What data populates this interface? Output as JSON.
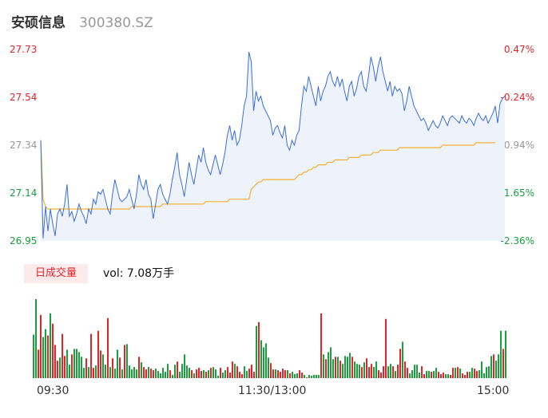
{
  "stock": {
    "name": "安硕信息",
    "code": "300380.SZ"
  },
  "price_axis": [
    "27.73",
    "27.54",
    "27.34",
    "27.14",
    "26.95"
  ],
  "pct_axis": [
    "0.47%",
    "-0.24%",
    "-0.94%",
    "-1.65%",
    "-2.36%"
  ],
  "axis_colors": {
    "up": "#e0262a",
    "neutral": "#999999",
    "down": "#1a9e3f"
  },
  "volume": {
    "tab_label": "日成交量",
    "summary": "vol: 7.08万手"
  },
  "time_axis": [
    "09:30",
    "11:30/13:00",
    "15:00"
  ],
  "colors": {
    "price_line": "#3a6fd8",
    "avg_line": "#f2b233",
    "area_fill": "#eef2fb",
    "up": "#e0262a",
    "down": "#1a9e3f"
  },
  "chart_data": {
    "type": "line",
    "title": "",
    "ylim": [
      26.95,
      27.73
    ],
    "price": [
      27.36,
      26.96,
      27.09,
      26.99,
      27.08,
      27.02,
      26.97,
      27.06,
      27.08,
      27.05,
      27.1,
      27.18,
      27.05,
      27.07,
      27.03,
      27.06,
      27.1,
      27.07,
      27.05,
      27.02,
      27.08,
      27.06,
      27.12,
      27.1,
      27.15,
      27.14,
      27.16,
      27.12,
      27.08,
      27.06,
      27.14,
      27.2,
      27.16,
      27.12,
      27.11,
      27.12,
      27.13,
      27.16,
      27.12,
      27.08,
      27.14,
      27.22,
      27.18,
      27.16,
      27.2,
      27.14,
      27.12,
      27.04,
      27.1,
      27.16,
      27.18,
      27.14,
      27.12,
      27.1,
      27.14,
      27.2,
      27.25,
      27.31,
      27.22,
      27.18,
      27.13,
      27.2,
      27.27,
      27.22,
      27.18,
      27.24,
      27.3,
      27.27,
      27.33,
      27.27,
      27.24,
      27.22,
      27.26,
      27.3,
      27.26,
      27.22,
      27.26,
      27.31,
      27.38,
      27.42,
      27.36,
      27.4,
      27.34,
      27.36,
      27.42,
      27.5,
      27.54,
      27.72,
      27.68,
      27.48,
      27.56,
      27.52,
      27.54,
      27.5,
      27.48,
      27.46,
      27.44,
      27.38,
      27.41,
      27.42,
      27.39,
      27.37,
      27.42,
      27.34,
      27.32,
      27.36,
      27.34,
      27.38,
      27.4,
      27.5,
      27.58,
      27.56,
      27.62,
      27.58,
      27.54,
      27.5,
      27.58,
      27.52,
      27.56,
      27.58,
      27.62,
      27.64,
      27.6,
      27.58,
      27.62,
      27.58,
      27.61,
      27.56,
      27.52,
      27.58,
      27.6,
      27.54,
      27.57,
      27.62,
      27.64,
      27.58,
      27.56,
      27.62,
      27.7,
      27.66,
      27.6,
      27.66,
      27.7,
      27.64,
      27.6,
      27.56,
      27.6,
      27.54,
      27.58,
      27.56,
      27.57,
      27.55,
      27.48,
      27.52,
      27.58,
      27.54,
      27.5,
      27.48,
      27.46,
      27.44,
      27.45,
      27.43,
      27.4,
      27.42,
      27.44,
      27.42,
      27.41,
      27.43,
      27.46,
      27.44,
      27.42,
      27.45,
      27.46,
      27.45,
      27.44,
      27.43,
      27.46,
      27.44,
      27.43,
      27.45,
      27.44,
      27.42,
      27.45,
      27.47,
      27.45,
      27.44,
      27.46,
      27.43,
      27.45,
      27.47,
      27.5,
      27.43,
      27.51,
      27.53,
      27.54
    ],
    "average": [
      27.36,
      27.12,
      27.09,
      27.08,
      27.08,
      27.08,
      27.08,
      27.08,
      27.08,
      27.08,
      27.08,
      27.08,
      27.08,
      27.08,
      27.08,
      27.08,
      27.08,
      27.08,
      27.08,
      27.08,
      27.08,
      27.08,
      27.08,
      27.08,
      27.08,
      27.08,
      27.08,
      27.08,
      27.08,
      27.08,
      27.08,
      27.08,
      27.08,
      27.08,
      27.08,
      27.08,
      27.08,
      27.08,
      27.09,
      27.09,
      27.09,
      27.09,
      27.09,
      27.09,
      27.09,
      27.09,
      27.09,
      27.09,
      27.09,
      27.09,
      27.09,
      27.1,
      27.1,
      27.1,
      27.1,
      27.1,
      27.1,
      27.1,
      27.1,
      27.1,
      27.1,
      27.1,
      27.1,
      27.1,
      27.1,
      27.1,
      27.1,
      27.1,
      27.1,
      27.11,
      27.11,
      27.11,
      27.11,
      27.11,
      27.11,
      27.11,
      27.11,
      27.11,
      27.11,
      27.12,
      27.12,
      27.12,
      27.12,
      27.12,
      27.12,
      27.12,
      27.12,
      27.12,
      27.16,
      27.17,
      27.18,
      27.19,
      27.19,
      27.2,
      27.2,
      27.2,
      27.2,
      27.2,
      27.2,
      27.2,
      27.2,
      27.2,
      27.2,
      27.2,
      27.2,
      27.2,
      27.2,
      27.21,
      27.22,
      27.22,
      27.23,
      27.23,
      27.24,
      27.24,
      27.25,
      27.25,
      27.26,
      27.26,
      27.26,
      27.26,
      27.27,
      27.27,
      27.27,
      27.28,
      27.28,
      27.28,
      27.28,
      27.28,
      27.28,
      27.29,
      27.29,
      27.29,
      27.29,
      27.29,
      27.3,
      27.3,
      27.3,
      27.3,
      27.3,
      27.31,
      27.31,
      27.31,
      27.32,
      27.32,
      27.32,
      27.32,
      27.32,
      27.32,
      27.32,
      27.32,
      27.33,
      27.33,
      27.33,
      27.33,
      27.33,
      27.33,
      27.33,
      27.33,
      27.33,
      27.33,
      27.33,
      27.33,
      27.33,
      27.33,
      27.33,
      27.33,
      27.33,
      27.33,
      27.34,
      27.34,
      27.34,
      27.34,
      27.34,
      27.34,
      27.34,
      27.34,
      27.34,
      27.34,
      27.34,
      27.34,
      27.34,
      27.34,
      27.35,
      27.35,
      27.35,
      27.35,
      27.35,
      27.35,
      27.35,
      27.35,
      27.35
    ],
    "volume_max": 100,
    "volumes": [
      [
        55,
        1
      ],
      [
        100,
        1
      ],
      [
        36,
        -1
      ],
      [
        80,
        -1
      ],
      [
        52,
        1
      ],
      [
        62,
        1
      ],
      [
        54,
        -1
      ],
      [
        82,
        1
      ],
      [
        69,
        -1
      ],
      [
        42,
        -1
      ],
      [
        22,
        -1
      ],
      [
        26,
        1
      ],
      [
        56,
        -1
      ],
      [
        28,
        -1
      ],
      [
        36,
        1
      ],
      [
        17,
        1
      ],
      [
        30,
        -1
      ],
      [
        37,
        1
      ],
      [
        37,
        1
      ],
      [
        33,
        1
      ],
      [
        27,
        1
      ],
      [
        13,
        1
      ],
      [
        25,
        -1
      ],
      [
        14,
        1
      ],
      [
        56,
        -1
      ],
      [
        13,
        -1
      ],
      [
        16,
        1
      ],
      [
        60,
        -1
      ],
      [
        35,
        -1
      ],
      [
        30,
        1
      ],
      [
        17,
        1
      ],
      [
        76,
        -1
      ],
      [
        14,
        1
      ],
      [
        25,
        -1
      ],
      [
        12,
        1
      ],
      [
        36,
        1
      ],
      [
        26,
        -1
      ],
      [
        11,
        1
      ],
      [
        42,
        -1
      ],
      [
        43,
        1
      ],
      [
        16,
        1
      ],
      [
        11,
        1
      ],
      [
        14,
        1
      ],
      [
        11,
        1
      ],
      [
        27,
        -1
      ],
      [
        20,
        1
      ],
      [
        14,
        -1
      ],
      [
        11,
        -1
      ],
      [
        14,
        1
      ],
      [
        12,
        -1
      ],
      [
        10,
        -1
      ],
      [
        12,
        1
      ],
      [
        9,
        1
      ],
      [
        6,
        1
      ],
      [
        13,
        1
      ],
      [
        8,
        1
      ],
      [
        18,
        1
      ],
      [
        10,
        -1
      ],
      [
        4,
        1
      ],
      [
        17,
        1
      ],
      [
        21,
        -1
      ],
      [
        8,
        1
      ],
      [
        18,
        1
      ],
      [
        30,
        1
      ],
      [
        16,
        1
      ],
      [
        13,
        1
      ],
      [
        10,
        -1
      ],
      [
        6,
        1
      ],
      [
        11,
        -1
      ],
      [
        13,
        -1
      ],
      [
        9,
        -1
      ],
      [
        10,
        1
      ],
      [
        8,
        -1
      ],
      [
        10,
        1
      ],
      [
        13,
        -1
      ],
      [
        14,
        1
      ],
      [
        11,
        1
      ],
      [
        3,
        1
      ],
      [
        13,
        -1
      ],
      [
        7,
        1
      ],
      [
        10,
        1
      ],
      [
        14,
        -1
      ],
      [
        7,
        -1
      ],
      [
        21,
        -1
      ],
      [
        18,
        1
      ],
      [
        15,
        -1
      ],
      [
        8,
        -1
      ],
      [
        5,
        -1
      ],
      [
        15,
        1
      ],
      [
        9,
        1
      ],
      [
        12,
        -1
      ],
      [
        17,
        -1
      ],
      [
        8,
        -1
      ],
      [
        66,
        1
      ],
      [
        71,
        -1
      ],
      [
        48,
        1
      ],
      [
        39,
        1
      ],
      [
        44,
        1
      ],
      [
        26,
        1
      ],
      [
        19,
        -1
      ],
      [
        11,
        -1
      ],
      [
        11,
        1
      ],
      [
        10,
        -1
      ],
      [
        8,
        -1
      ],
      [
        12,
        -1
      ],
      [
        10,
        -1
      ],
      [
        10,
        1
      ],
      [
        6,
        -1
      ],
      [
        8,
        1
      ],
      [
        5,
        1
      ],
      [
        6,
        1
      ],
      [
        10,
        -1
      ],
      [
        7,
        -1
      ],
      [
        4,
        1
      ],
      [
        1,
        -1
      ],
      [
        4,
        1
      ],
      [
        3,
        1
      ],
      [
        4,
        1
      ],
      [
        4,
        1
      ],
      [
        4,
        1
      ],
      [
        82,
        -1
      ],
      [
        30,
        1
      ],
      [
        24,
        -1
      ],
      [
        33,
        1
      ],
      [
        39,
        1
      ],
      [
        24,
        1
      ],
      [
        27,
        -1
      ],
      [
        27,
        1
      ],
      [
        22,
        -1
      ],
      [
        18,
        1
      ],
      [
        28,
        1
      ],
      [
        27,
        1
      ],
      [
        32,
        1
      ],
      [
        27,
        -1
      ],
      [
        21,
        1
      ],
      [
        18,
        1
      ],
      [
        17,
        1
      ],
      [
        14,
        -1
      ],
      [
        20,
        1
      ],
      [
        25,
        -1
      ],
      [
        14,
        -1
      ],
      [
        18,
        -1
      ],
      [
        14,
        1
      ],
      [
        21,
        1
      ],
      [
        10,
        -1
      ],
      [
        7,
        -1
      ],
      [
        15,
        -1
      ],
      [
        75,
        -1
      ],
      [
        15,
        1
      ],
      [
        18,
        1
      ],
      [
        15,
        -1
      ],
      [
        9,
        1
      ],
      [
        17,
        -1
      ],
      [
        37,
        -1
      ],
      [
        46,
        1
      ],
      [
        21,
        -1
      ],
      [
        13,
        -1
      ],
      [
        6,
        1
      ],
      [
        10,
        1
      ],
      [
        17,
        1
      ],
      [
        17,
        1
      ],
      [
        7,
        1
      ],
      [
        15,
        -1
      ],
      [
        5,
        -1
      ],
      [
        9,
        1
      ],
      [
        9,
        1
      ],
      [
        8,
        -1
      ],
      [
        9,
        1
      ],
      [
        13,
        1
      ],
      [
        8,
        -1
      ],
      [
        5,
        -1
      ],
      [
        7,
        -1
      ],
      [
        5,
        1
      ],
      [
        5,
        1
      ],
      [
        4,
        -1
      ],
      [
        13,
        -1
      ],
      [
        13,
        1
      ],
      [
        14,
        -1
      ],
      [
        12,
        1
      ],
      [
        6,
        -1
      ],
      [
        4,
        -1
      ],
      [
        8,
        -1
      ],
      [
        8,
        1
      ],
      [
        13,
        1
      ],
      [
        12,
        -1
      ],
      [
        9,
        -1
      ],
      [
        10,
        1
      ],
      [
        21,
        1
      ],
      [
        6,
        1
      ],
      [
        14,
        1
      ],
      [
        15,
        1
      ],
      [
        28,
        1
      ],
      [
        30,
        -1
      ],
      [
        22,
        1
      ],
      [
        30,
        1
      ],
      [
        60,
        1
      ],
      [
        37,
        -1
      ],
      [
        60,
        1
      ]
    ]
  }
}
